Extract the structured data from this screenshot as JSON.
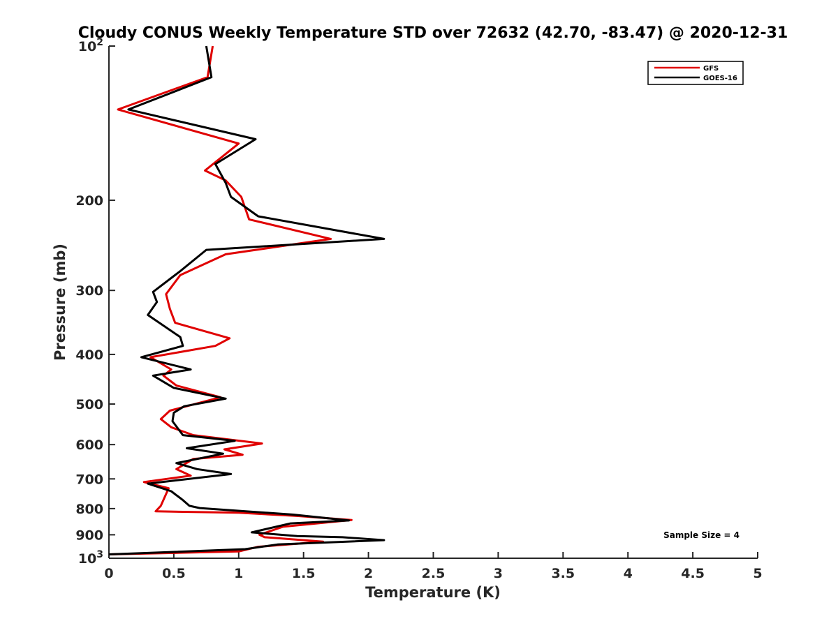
{
  "chart_data": {
    "type": "line",
    "title": "Cloudy CONUS Weekly Temperature STD over 72632 (42.70, -83.47) @ 2020-12-31",
    "xlabel": "Temperature (K)",
    "ylabel": "Pressure (mb)",
    "xlim": [
      0,
      5
    ],
    "ylim": [
      100,
      1000
    ],
    "y_scale": "log",
    "y_reversed": true,
    "x_ticks": [
      "0",
      "0.5",
      "1",
      "1.5",
      "2",
      "2.5",
      "3",
      "3.5",
      "4",
      "4.5",
      "5"
    ],
    "y_ticks": [
      {
        "value": 100,
        "base": "10",
        "exp": "2"
      },
      {
        "value": 200,
        "label": "200"
      },
      {
        "value": 300,
        "label": "300"
      },
      {
        "value": 400,
        "label": "400"
      },
      {
        "value": 500,
        "label": "500"
      },
      {
        "value": 600,
        "label": "600"
      },
      {
        "value": 700,
        "label": "700"
      },
      {
        "value": 800,
        "label": "800"
      },
      {
        "value": 900,
        "label": "900"
      },
      {
        "value": 1000,
        "base": "10",
        "exp": "3"
      }
    ],
    "grid": false,
    "legend_position": "top-right",
    "annotation": "Sample Size = 4",
    "series": [
      {
        "name": "GFS",
        "color": "#e00000",
        "points": [
          [
            0.8,
            100
          ],
          [
            0.76,
            115
          ],
          [
            0.07,
            133
          ],
          [
            1.0,
            155
          ],
          [
            0.74,
            175
          ],
          [
            0.9,
            183
          ],
          [
            1.02,
            197
          ],
          [
            1.08,
            218
          ],
          [
            1.71,
            238
          ],
          [
            0.9,
            255
          ],
          [
            0.55,
            280
          ],
          [
            0.44,
            305
          ],
          [
            0.47,
            326
          ],
          [
            0.51,
            347
          ],
          [
            0.93,
            372
          ],
          [
            0.82,
            385
          ],
          [
            0.32,
            405
          ],
          [
            0.48,
            428
          ],
          [
            0.42,
            440
          ],
          [
            0.52,
            460
          ],
          [
            0.86,
            485
          ],
          [
            0.47,
            515
          ],
          [
            0.4,
            535
          ],
          [
            0.48,
            555
          ],
          [
            0.65,
            575
          ],
          [
            1.18,
            597
          ],
          [
            0.89,
            613
          ],
          [
            1.03,
            628
          ],
          [
            0.65,
            640
          ],
          [
            0.52,
            670
          ],
          [
            0.63,
            690
          ],
          [
            0.27,
            710
          ],
          [
            0.46,
            730
          ],
          [
            0.4,
            790
          ],
          [
            0.36,
            810
          ],
          [
            1.0,
            815
          ],
          [
            1.45,
            827
          ],
          [
            1.87,
            842
          ],
          [
            1.34,
            868
          ],
          [
            1.16,
            900
          ],
          [
            1.2,
            910
          ],
          [
            1.65,
            928
          ],
          [
            1.15,
            950
          ],
          [
            1.0,
            970
          ],
          [
            0.0,
            983
          ]
        ]
      },
      {
        "name": "GOES-16",
        "color": "#000000",
        "points": [
          [
            0.75,
            100
          ],
          [
            0.79,
            115
          ],
          [
            0.15,
            133
          ],
          [
            1.13,
            152
          ],
          [
            0.82,
            170
          ],
          [
            0.9,
            185
          ],
          [
            0.94,
            197
          ],
          [
            1.15,
            215
          ],
          [
            2.12,
            238
          ],
          [
            0.75,
            250
          ],
          [
            0.55,
            275
          ],
          [
            0.34,
            302
          ],
          [
            0.37,
            316
          ],
          [
            0.3,
            335
          ],
          [
            0.55,
            370
          ],
          [
            0.57,
            385
          ],
          [
            0.25,
            405
          ],
          [
            0.63,
            428
          ],
          [
            0.34,
            440
          ],
          [
            0.5,
            465
          ],
          [
            0.9,
            488
          ],
          [
            0.58,
            505
          ],
          [
            0.5,
            520
          ],
          [
            0.49,
            540
          ],
          [
            0.57,
            575
          ],
          [
            0.97,
            590
          ],
          [
            0.6,
            610
          ],
          [
            0.88,
            625
          ],
          [
            0.52,
            652
          ],
          [
            0.68,
            670
          ],
          [
            0.94,
            685
          ],
          [
            0.3,
            715
          ],
          [
            0.48,
            740
          ],
          [
            0.57,
            770
          ],
          [
            0.62,
            790
          ],
          [
            0.7,
            798
          ],
          [
            1.42,
            822
          ],
          [
            1.85,
            844
          ],
          [
            1.4,
            855
          ],
          [
            1.1,
            890
          ],
          [
            1.45,
            905
          ],
          [
            1.8,
            910
          ],
          [
            2.12,
            922
          ],
          [
            1.3,
            940
          ],
          [
            1.05,
            960
          ],
          [
            0.0,
            983
          ]
        ]
      }
    ]
  }
}
